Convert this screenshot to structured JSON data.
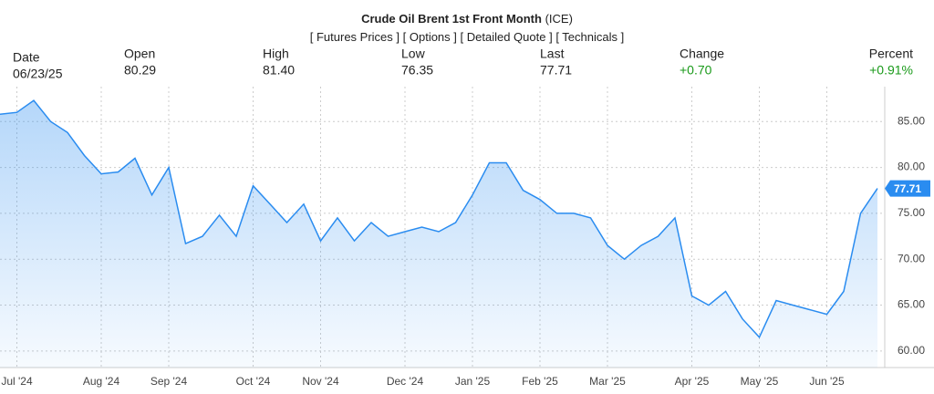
{
  "header": {
    "title": "Crude Oil Brent 1st Front Month",
    "exchange": "(ICE)",
    "links": [
      "[ Futures Prices ]",
      "[ Options ]",
      "[ Detailed Quote ]",
      "[ Technicals ]"
    ],
    "quote": [
      {
        "label": "Date",
        "value": "06/23/25"
      },
      {
        "label": "Open",
        "value": "80.29"
      },
      {
        "label": "High",
        "value": "81.40"
      },
      {
        "label": "Low",
        "value": "76.35"
      },
      {
        "label": "Last",
        "value": "77.71"
      },
      {
        "label": "Change",
        "value": "+0.70"
      },
      {
        "label": "Percent",
        "value": "+0.91%"
      }
    ]
  },
  "chart_data": {
    "type": "area",
    "categories": [
      null,
      "Jul '24",
      null,
      null,
      null,
      null,
      "Aug '24",
      null,
      null,
      null,
      "Sep '24",
      null,
      null,
      null,
      null,
      "Oct '24",
      null,
      null,
      null,
      "Nov '24",
      null,
      null,
      null,
      null,
      "Dec '24",
      null,
      null,
      null,
      "Jan '25",
      null,
      null,
      null,
      "Feb '25",
      null,
      null,
      null,
      "Mar '25",
      null,
      null,
      null,
      null,
      "Apr '25",
      null,
      null,
      null,
      "May '25",
      null,
      null,
      null,
      "Jun '25",
      null,
      null,
      null
    ],
    "series": [
      {
        "name": "Crude Oil Brent 1st Front Month",
        "color": "#2a8cf0",
        "values": [
          85.8,
          86,
          87.3,
          85,
          83.8,
          81.3,
          79.3,
          79.5,
          81,
          77,
          80,
          71.7,
          72.5,
          74.8,
          72.5,
          78,
          76,
          74,
          76,
          72,
          74.5,
          72,
          74,
          72.5,
          73,
          73.5,
          73,
          74,
          77,
          80.5,
          80.5,
          77.5,
          76.5,
          75,
          75,
          74.5,
          71.5,
          70,
          71.5,
          72.5,
          74.5,
          66,
          65,
          66.5,
          63.5,
          61.5,
          65.5,
          65,
          64.5,
          64,
          66.5,
          75,
          77.71
        ],
        "value_labels": [
          null,
          null,
          null,
          null,
          null,
          null,
          null,
          null,
          null,
          null,
          null,
          null,
          null,
          null,
          null,
          null,
          null,
          null,
          null,
          null,
          null,
          null,
          null,
          null,
          null,
          null,
          null,
          null,
          null,
          null,
          null,
          null,
          null,
          null,
          null,
          null,
          null,
          null,
          null,
          null,
          null,
          null,
          null,
          null,
          null,
          null,
          null,
          null,
          null,
          null,
          null,
          null,
          "77.71"
        ]
      }
    ],
    "ylim": [
      58.2,
      88.8
    ],
    "yticks": [
      {
        "value": 60,
        "label": "60.00"
      },
      {
        "value": 65,
        "label": "65.00"
      },
      {
        "value": 70,
        "label": "70.00"
      },
      {
        "value": 75,
        "label": "75.00"
      },
      {
        "value": 80,
        "label": "80.00"
      },
      {
        "value": 85,
        "label": "85.00"
      }
    ],
    "grid": true
  }
}
